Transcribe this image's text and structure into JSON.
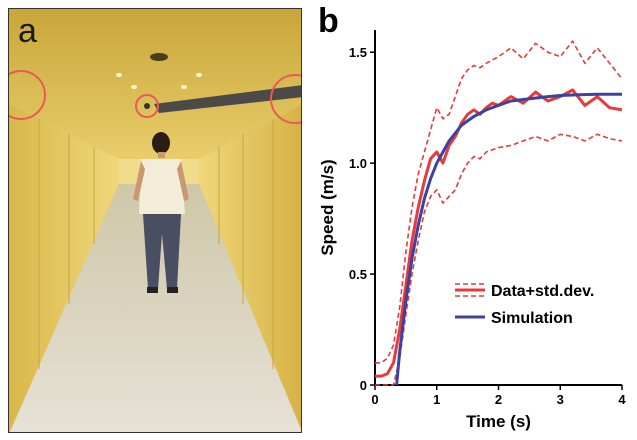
{
  "panels": {
    "a_label": "a",
    "b_label": "b"
  },
  "colors": {
    "data": "#e83a3a",
    "simulation": "#3a43a0",
    "wall": "#e4c75a",
    "floor": "#d9d4c4"
  },
  "chart_data": {
    "type": "line",
    "xlabel": "Time (s)",
    "ylabel": "Speed (m/s)",
    "xlim": [
      0,
      4
    ],
    "ylim": [
      0,
      1.6
    ],
    "xticks": [
      "0",
      "1",
      "2",
      "3",
      "4"
    ],
    "yticks": [
      "0",
      "0.5",
      "1.0",
      "1.5"
    ],
    "xtick_values": [
      0,
      1,
      2,
      3,
      4
    ],
    "ytick_values": [
      0,
      0.5,
      1.0,
      1.5
    ],
    "grid": false,
    "legend_position": "middle-right",
    "series": [
      {
        "name": "Data+std.dev.",
        "style": "solid",
        "x": [
          0,
          0.1,
          0.2,
          0.3,
          0.4,
          0.5,
          0.6,
          0.7,
          0.8,
          0.9,
          1.0,
          1.1,
          1.2,
          1.3,
          1.4,
          1.5,
          1.6,
          1.7,
          1.8,
          1.9,
          2.0,
          2.2,
          2.4,
          2.6,
          2.8,
          3.0,
          3.2,
          3.4,
          3.6,
          3.8,
          4.0
        ],
        "y": [
          0.04,
          0.04,
          0.05,
          0.1,
          0.25,
          0.45,
          0.65,
          0.8,
          0.92,
          1.02,
          1.05,
          1.0,
          1.08,
          1.12,
          1.18,
          1.22,
          1.24,
          1.22,
          1.25,
          1.27,
          1.26,
          1.3,
          1.27,
          1.32,
          1.28,
          1.3,
          1.33,
          1.26,
          1.3,
          1.25,
          1.24
        ]
      },
      {
        "name": "Data upper std.dev.",
        "style": "dashed",
        "x": [
          0,
          0.1,
          0.2,
          0.3,
          0.4,
          0.5,
          0.6,
          0.7,
          0.8,
          0.9,
          1.0,
          1.1,
          1.2,
          1.3,
          1.4,
          1.5,
          1.6,
          1.7,
          1.8,
          2.0,
          2.2,
          2.4,
          2.6,
          2.8,
          3.0,
          3.2,
          3.4,
          3.6,
          3.8,
          4.0
        ],
        "y": [
          0.1,
          0.1,
          0.12,
          0.18,
          0.35,
          0.6,
          0.8,
          0.95,
          1.05,
          1.15,
          1.25,
          1.2,
          1.22,
          1.3,
          1.38,
          1.42,
          1.44,
          1.43,
          1.45,
          1.48,
          1.52,
          1.47,
          1.54,
          1.5,
          1.48,
          1.55,
          1.45,
          1.52,
          1.45,
          1.38
        ]
      },
      {
        "name": "Data lower std.dev.",
        "style": "dashed",
        "x": [
          0,
          0.1,
          0.2,
          0.3,
          0.4,
          0.5,
          0.6,
          0.7,
          0.8,
          0.9,
          1.0,
          1.1,
          1.2,
          1.3,
          1.4,
          1.5,
          1.6,
          1.7,
          1.8,
          2.0,
          2.2,
          2.4,
          2.6,
          2.8,
          3.0,
          3.2,
          3.4,
          3.6,
          3.8,
          4.0
        ],
        "y": [
          0,
          0,
          0,
          0,
          0.12,
          0.32,
          0.5,
          0.65,
          0.78,
          0.85,
          0.88,
          0.82,
          0.85,
          0.88,
          0.95,
          1.0,
          1.03,
          1.02,
          1.05,
          1.07,
          1.08,
          1.1,
          1.12,
          1.1,
          1.13,
          1.12,
          1.1,
          1.13,
          1.11,
          1.1
        ]
      },
      {
        "name": "Simulation",
        "style": "solid",
        "x": [
          0.35,
          0.4,
          0.5,
          0.6,
          0.7,
          0.8,
          0.9,
          1.0,
          1.2,
          1.4,
          1.6,
          1.8,
          2.0,
          2.2,
          2.5,
          2.8,
          3.0,
          3.3,
          3.6,
          4.0
        ],
        "y": [
          0,
          0.15,
          0.38,
          0.57,
          0.72,
          0.84,
          0.93,
          1.0,
          1.1,
          1.17,
          1.21,
          1.24,
          1.26,
          1.28,
          1.29,
          1.3,
          1.305,
          1.308,
          1.31,
          1.31
        ]
      }
    ],
    "legend": [
      {
        "label": "Data+std.dev.",
        "style": "data"
      },
      {
        "label": "Simulation",
        "style": "simulation"
      }
    ]
  }
}
